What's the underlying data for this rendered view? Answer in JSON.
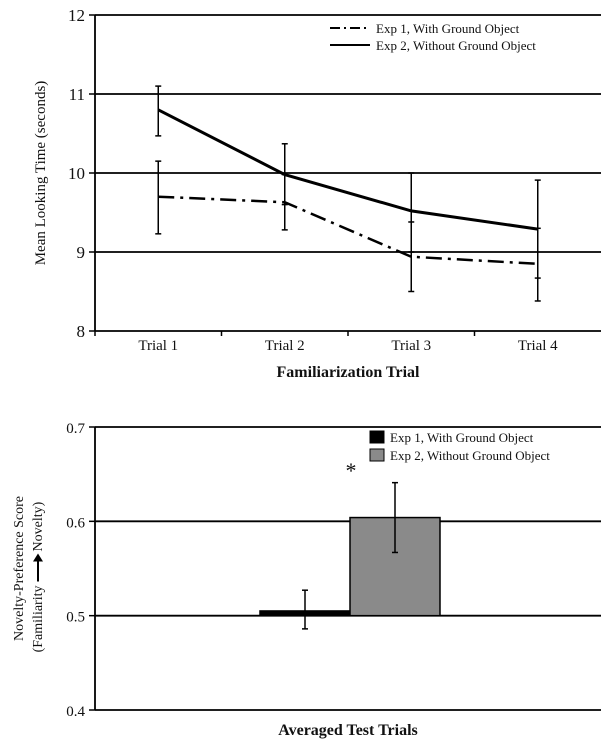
{
  "chart_data": [
    {
      "type": "line",
      "xlabel": "Familiarization Trial",
      "ylabel": "Mean Looking Time (seconds)",
      "categories": [
        "Trial 1",
        "Trial 2",
        "Trial 3",
        "Trial 4"
      ],
      "ylim": [
        8,
        12
      ],
      "yticks": [
        "8",
        "9",
        "10",
        "11",
        "12"
      ],
      "grid": "horizontal",
      "legend": "top-right",
      "series": [
        {
          "name": "Exp 1, With Ground Object",
          "style": "dash-dot",
          "values": [
            9.7,
            9.63,
            8.94,
            8.85
          ],
          "error_low": [
            9.23,
            9.28,
            8.5,
            8.38
          ],
          "error_high": [
            10.15,
            9.98,
            9.38,
            9.3
          ]
        },
        {
          "name": "Exp 2, Without Ground Object",
          "style": "solid",
          "values": [
            10.8,
            9.98,
            9.52,
            9.29
          ],
          "error_low": [
            10.47,
            9.6,
            9.0,
            8.67
          ],
          "error_high": [
            11.1,
            10.37,
            10.0,
            9.91
          ]
        }
      ]
    },
    {
      "type": "bar",
      "xlabel": "Averaged Test Trials",
      "ylabel_line1": "Novelty-Preference Score",
      "ylabel_line2_left": "(Familiarity",
      "ylabel_line2_right": "Novelty)",
      "ylim": [
        0.4,
        0.7
      ],
      "yticks": [
        "0.4",
        "0.5",
        "0.6",
        "0.7"
      ],
      "grid": "horizontal",
      "legend": "top-right",
      "annotation": "*",
      "series": [
        {
          "name": "Exp 1, With Ground Object",
          "color": "#000000",
          "value": 0.505,
          "error_low": 0.486,
          "error_high": 0.527
        },
        {
          "name": "Exp 2, Without Ground Object",
          "color": "#8a8a8a",
          "value": 0.604,
          "error_low": 0.567,
          "error_high": 0.641
        }
      ]
    }
  ]
}
